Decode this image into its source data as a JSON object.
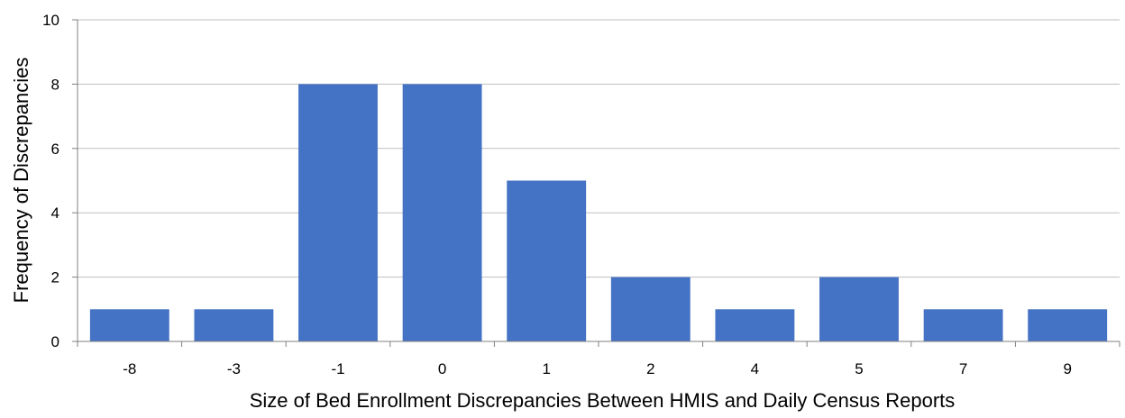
{
  "chart_data": {
    "type": "bar",
    "title": "",
    "xlabel": "Size of Bed Enrollment Discrepancies Between HMIS and Daily Census Reports",
    "ylabel": "Frequency of Discrepancies",
    "categories": [
      "-8",
      "-3",
      "-1",
      "0",
      "1",
      "2",
      "4",
      "5",
      "7",
      "9"
    ],
    "values": [
      1,
      1,
      8,
      8,
      5,
      2,
      1,
      2,
      1,
      1
    ],
    "ylim": [
      0,
      10
    ],
    "yticks": [
      "0",
      "2",
      "4",
      "6",
      "8",
      "10"
    ],
    "grid": true,
    "bar_color": "#4472C4",
    "grid_color": "#BFBFBF",
    "axis_color": "#808080"
  }
}
